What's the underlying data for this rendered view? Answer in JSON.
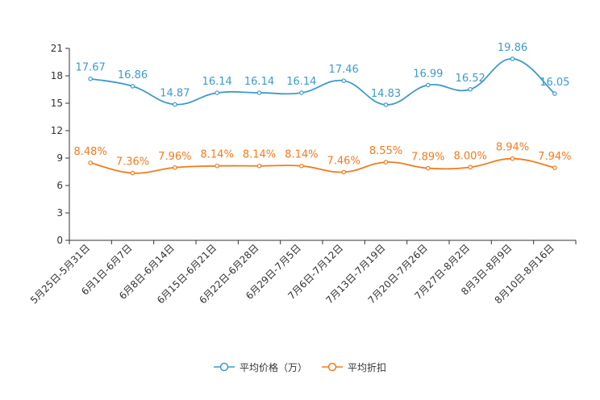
{
  "chart_data": {
    "type": "line",
    "categories": [
      "5月25日-5月31日",
      "6月1日-6月7日",
      "6月8日-6月14日",
      "6月15日-6月21日",
      "6月22日-6月28日",
      "6月29日-7月5日",
      "7月6日-7月12日",
      "7月13日-7月19日",
      "7月20日-7月26日",
      "7月27日-8月2日",
      "8月3日-8月9日",
      "8月10日-8月16日"
    ],
    "yticks": [
      "0",
      "3",
      "6",
      "9",
      "12",
      "15",
      "18",
      "21"
    ],
    "ylim": [
      0,
      21
    ],
    "series": [
      {
        "name": "平均价格（万）",
        "color": "#3d9bca",
        "values": [
          17.67,
          16.86,
          14.87,
          16.14,
          16.14,
          16.14,
          17.46,
          14.83,
          16.99,
          16.52,
          19.86,
          16.05
        ],
        "labels": [
          "17.67",
          "16.86",
          "14.87",
          "16.14",
          "16.14",
          "16.14",
          "17.46",
          "14.83",
          "16.99",
          "16.52",
          "19.86",
          "16.05"
        ]
      },
      {
        "name": "平均折扣",
        "color": "#f37b1d",
        "values": [
          8.48,
          7.36,
          7.96,
          8.14,
          8.14,
          8.14,
          7.46,
          8.55,
          7.89,
          8.0,
          8.94,
          7.94
        ],
        "labels": [
          "8.48%",
          "7.36%",
          "7.96%",
          "8.14%",
          "8.14%",
          "8.14%",
          "7.46%",
          "8.55%",
          "7.89%",
          "8.00%",
          "8.94%",
          "7.94%"
        ]
      }
    ]
  },
  "legend": {
    "items": [
      "平均价格（万）",
      "平均折扣"
    ]
  }
}
